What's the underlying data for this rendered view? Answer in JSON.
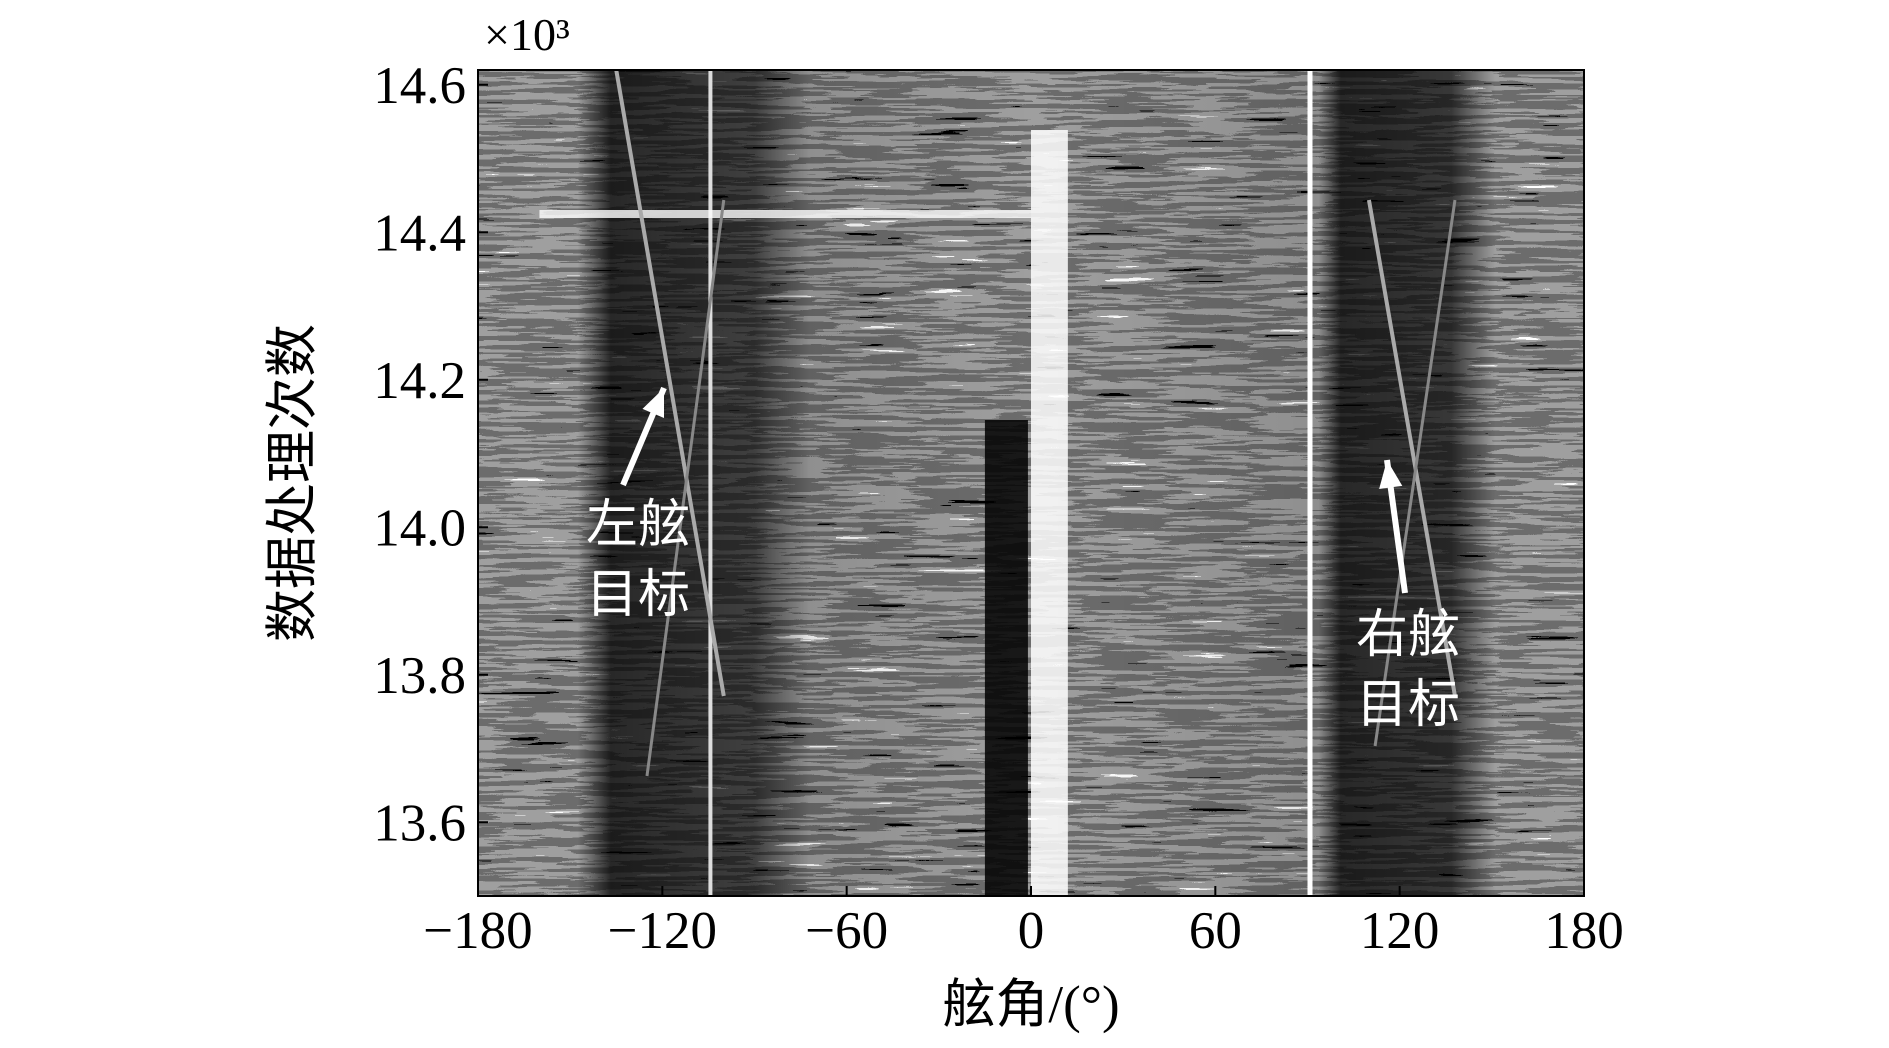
{
  "chart_data": {
    "type": "heatmap",
    "x_label": "舷角/(°)",
    "y_label": "数据处理次数",
    "y_multiplier": "×10³",
    "xlim": [
      -180,
      180
    ],
    "xticks": [
      {
        "value": -180,
        "label": "−180"
      },
      {
        "value": -120,
        "label": "−120"
      },
      {
        "value": -60,
        "label": "−60"
      },
      0,
      60,
      120,
      180
    ],
    "ylim": [
      13.5,
      14.62
    ],
    "yticks": [
      13.6,
      13.8,
      {
        "value": 14,
        "label": "14.0"
      },
      14.2,
      14.4,
      14.6
    ],
    "grid": false,
    "annotations": [
      [
        "左舷",
        "目标"
      ],
      [
        "右舷",
        "目标"
      ]
    ]
  }
}
